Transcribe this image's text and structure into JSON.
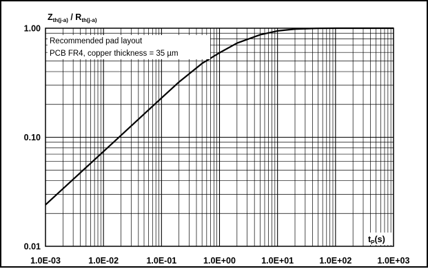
{
  "chart_data": {
    "type": "line",
    "x_scale": "log",
    "y_scale": "log",
    "xlim": [
      0.001,
      1000
    ],
    "ylim": [
      0.01,
      1
    ],
    "grid": true,
    "x_tick_labels": [
      "1.0E-03",
      "1.0E-02",
      "1.0E-01",
      "1.0E+00",
      "1.0E+01",
      "1.0E+02",
      "1.0E+03"
    ],
    "x_tick_values": [
      0.001,
      0.01,
      0.1,
      1,
      10,
      100,
      1000
    ],
    "y_tick_labels": [
      "0.01",
      "0.10",
      "1.00"
    ],
    "y_tick_values": [
      0.01,
      0.1,
      1
    ],
    "ylabel": {
      "main1": "Z",
      "sub1": "th(j-a)",
      "sep": " / ",
      "main2": "R",
      "sub2": "th(j-a)"
    },
    "xlabel": {
      "main": "t",
      "sub": "P",
      "unit": "(s)"
    },
    "annotation_lines": [
      "Recommended pad layout",
      "PCB FR4, copper thickness = 35 µm"
    ],
    "series": [
      {
        "x": [
          0.001,
          0.002,
          0.005,
          0.01,
          0.02,
          0.05,
          0.1,
          0.2,
          0.5,
          1,
          2,
          5,
          10,
          20,
          50,
          100,
          200,
          500,
          1000
        ],
        "y": [
          0.024,
          0.0337,
          0.0528,
          0.0741,
          0.104,
          0.163,
          0.229,
          0.321,
          0.475,
          0.595,
          0.73,
          0.87,
          0.945,
          0.982,
          0.997,
          1.0,
          1.0,
          1.0,
          1.0
        ]
      }
    ],
    "colors": {
      "line": "#000000",
      "grid": "#000000",
      "background": "#ffffff"
    }
  }
}
